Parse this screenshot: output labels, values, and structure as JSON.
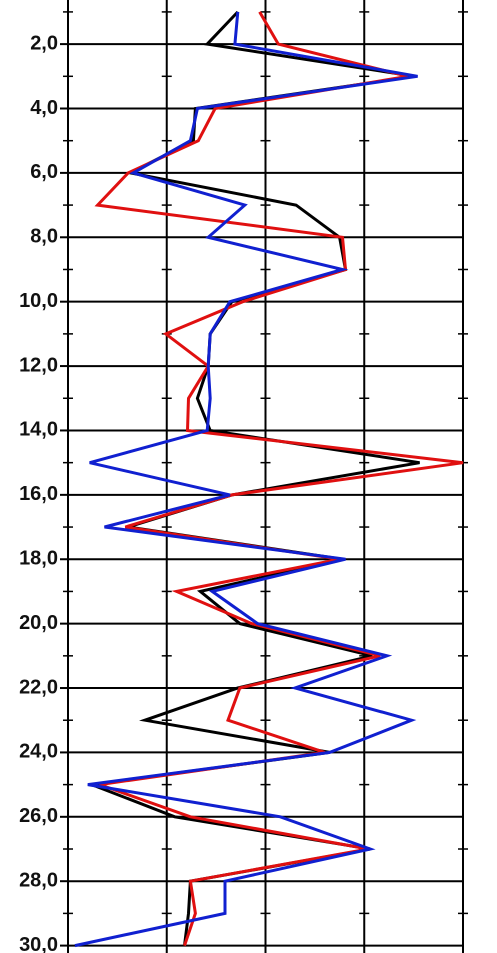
{
  "chart_data": {
    "type": "depth-line",
    "y": [
      1,
      2,
      3,
      4,
      5,
      6,
      7,
      8,
      9,
      10,
      11,
      12,
      13,
      14,
      15,
      16,
      17,
      18,
      19,
      20,
      21,
      22,
      23,
      24,
      25,
      26,
      27,
      28,
      29,
      30
    ],
    "ylim": [
      0.63,
      30.23
    ],
    "inverted_y": true,
    "yticks": [
      {
        "value": 2,
        "label": "2,0"
      },
      {
        "value": 4,
        "label": "4,0"
      },
      {
        "value": 6,
        "label": "6,0"
      },
      {
        "value": 8,
        "label": "8,0"
      },
      {
        "value": 10,
        "label": "10,0"
      },
      {
        "value": 12,
        "label": "12,0"
      },
      {
        "value": 14,
        "label": "14,0"
      },
      {
        "value": 16,
        "label": "16,0"
      },
      {
        "value": 18,
        "label": "18,0"
      },
      {
        "value": 20,
        "label": "20,0"
      },
      {
        "value": 22,
        "label": "22,0"
      },
      {
        "value": 24,
        "label": "24,0"
      },
      {
        "value": 26,
        "label": "26,0"
      },
      {
        "value": 28,
        "label": "28,0"
      },
      {
        "value": 30,
        "label": "30,0"
      }
    ],
    "yminorticks": [
      1,
      3,
      5,
      7,
      9,
      11,
      13,
      15,
      17,
      19,
      21,
      23,
      25,
      27,
      29
    ],
    "xlim": [
      0,
      4
    ],
    "xticks": [
      1,
      2,
      3
    ],
    "grid": true,
    "series": [
      {
        "color": "#000000",
        "values": [
          1.72,
          1.41,
          3.51,
          1.29,
          1.27,
          0.63,
          2.31,
          2.75,
          2.81,
          1.66,
          1.44,
          1.42,
          1.31,
          1.44,
          3.56,
          1.66,
          0.61,
          2.78,
          1.34,
          1.74,
          3.08,
          1.72,
          0.78,
          2.65,
          0.24,
          1.08,
          3.06,
          1.24,
          1.22,
          1.18
        ]
      },
      {
        "color": "#e01010",
        "values": [
          1.94,
          2.13,
          3.44,
          1.49,
          1.32,
          0.61,
          0.3,
          2.78,
          2.81,
          1.77,
          0.99,
          1.42,
          1.22,
          1.21,
          4.0,
          1.66,
          0.58,
          2.75,
          1.1,
          1.86,
          3.16,
          1.74,
          1.62,
          2.6,
          0.32,
          1.24,
          3.04,
          1.24,
          1.29,
          1.18
        ]
      },
      {
        "color": "#1020d0",
        "values": [
          1.72,
          1.69,
          3.54,
          1.31,
          1.24,
          0.66,
          1.79,
          1.42,
          2.78,
          1.64,
          1.44,
          1.42,
          1.44,
          1.41,
          0.22,
          1.64,
          0.37,
          2.81,
          1.46,
          1.92,
          3.23,
          2.3,
          3.48,
          2.65,
          0.2,
          2.15,
          3.06,
          1.59,
          1.59,
          0.07
        ]
      }
    ]
  }
}
